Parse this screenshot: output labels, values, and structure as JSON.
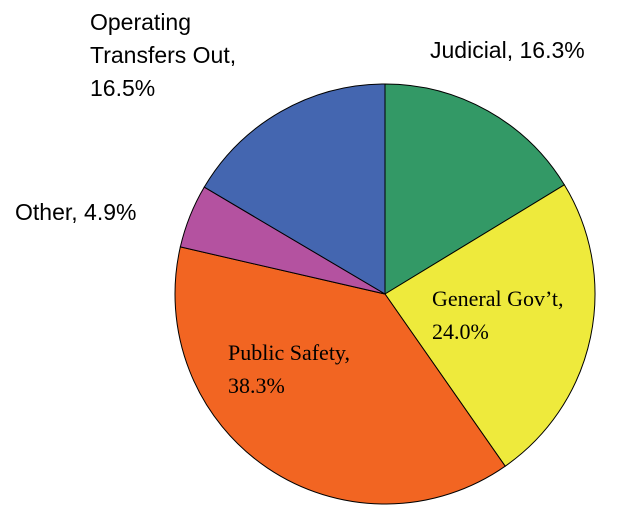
{
  "chart_data": {
    "type": "pie",
    "values": [
      16.3,
      24.0,
      38.3,
      4.9,
      16.5
    ],
    "value_labels": [
      "Judicial, 16.3%",
      "General Gov’t, 24.0%",
      "Public Safety, 38.3%",
      "Other, 4.9%",
      "Operating Transfers Out, 16.5%"
    ],
    "colors": [
      "#339966",
      "#eeea3c",
      "#f26522",
      "#b452a0",
      "#4466b0"
    ]
  }
}
